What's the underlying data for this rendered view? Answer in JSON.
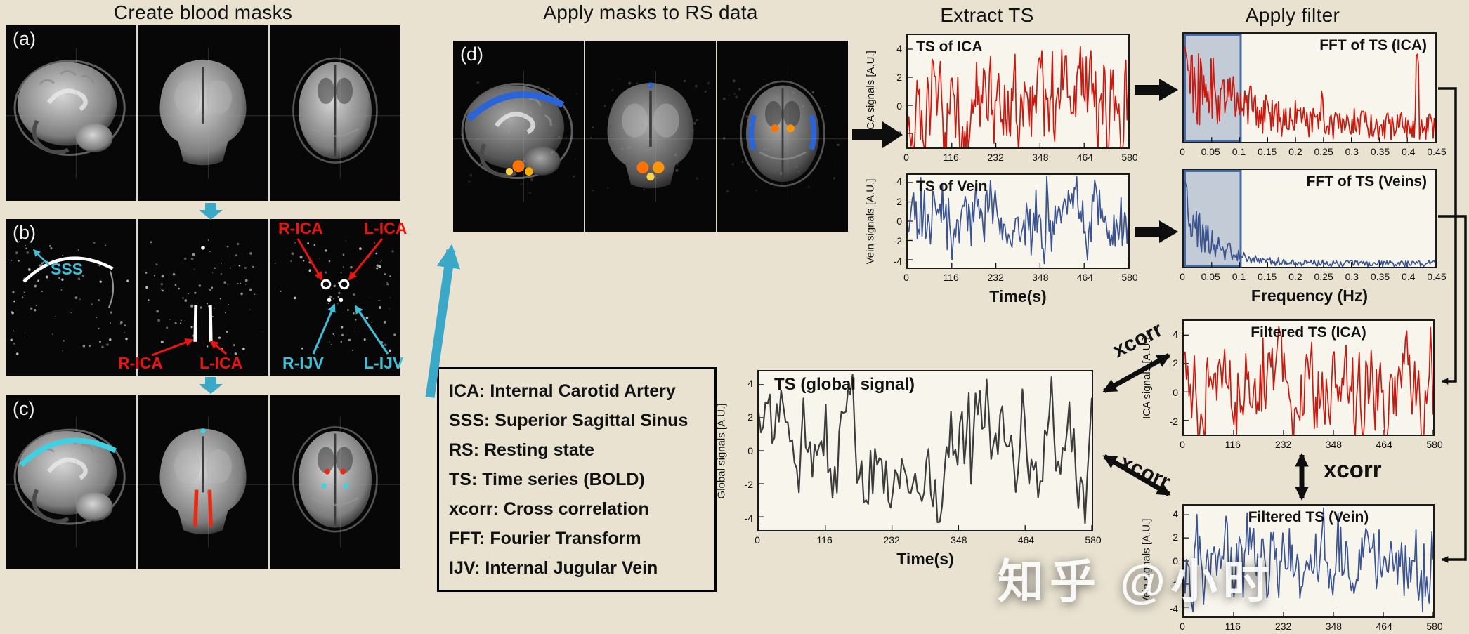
{
  "colors": {
    "background": "#e9e2d1",
    "panel_black": "#0a0a0a",
    "cyan_arrow": "#3aa8c6",
    "annotation_red": "#ed1410",
    "annotation_cyan": "#3fc0d8",
    "ica_red": "#c81a10",
    "vein_blue": "#3a5391",
    "global_gray": "#3c3c3c",
    "plot_background": "#f8f5ec",
    "filter_band_fill": "rgba(108,134,178,0.38)",
    "filter_band_border": "#46699f"
  },
  "left": {
    "title": "Create blood masks",
    "panels": [
      {
        "label": "(a)"
      },
      {
        "label": "(b)"
      },
      {
        "label": "(c)"
      }
    ]
  },
  "panel_b": {
    "sss": "SSS",
    "r_ica_top": "R-ICA",
    "l_ica_top": "L-ICA",
    "r_ica_bottom": "R-ICA",
    "l_ica_bottom": "L-ICA",
    "r_ijv": "R-IJV",
    "l_ijv": "L-IJV"
  },
  "middle": {
    "title": "Apply masks to RS data",
    "panel_label": "(d)",
    "legend": {
      "lines": [
        "ICA: Internal Carotid Artery",
        "SSS: Superior Sagittal Sinus",
        "RS: Resting state",
        "TS: Time series (BOLD)",
        "xcorr: Cross correlation",
        "FFT: Fourier Transform",
        "IJV: Internal Jugular Vein"
      ]
    }
  },
  "sections": {
    "extract_ts": "Extract TS",
    "apply_filter": "Apply filter"
  },
  "xcorr": [
    "xcorr",
    "xcorr",
    "xcorr"
  ],
  "watermark": "知乎 @小时",
  "chart_data": [
    {
      "id": "ts_ica",
      "type": "line",
      "title": "TS of ICA",
      "title_pos": "tl",
      "color": "#c81a10",
      "ylabel": "ICA signals [A.U.]",
      "xlabel": "",
      "xticks": [
        0,
        116,
        232,
        348,
        464,
        580
      ],
      "xlim": [
        0,
        580
      ],
      "yticks": [
        4,
        2,
        0,
        -2
      ],
      "ylim": [
        -3,
        5
      ],
      "signal": {
        "kind": "ts",
        "seed": 17,
        "n": 190,
        "sd": 1.25,
        "smooth": 0.45,
        "spike": 0.035
      }
    },
    {
      "id": "ts_vein",
      "type": "line",
      "title": "TS of Vein",
      "title_pos": "tl",
      "color": "#3a5391",
      "ylabel": "Vein signals [A.U.]",
      "xlabel": "Time(s)",
      "xticks": [
        0,
        116,
        232,
        348,
        464,
        580
      ],
      "xlim": [
        0,
        580
      ],
      "yticks": [
        4,
        2,
        0,
        -2,
        -4
      ],
      "ylim": [
        -4.8,
        4.8
      ],
      "signal": {
        "kind": "ts",
        "seed": 29,
        "n": 185,
        "sd": 1.5,
        "smooth": 0.55,
        "spike": 0.02
      }
    },
    {
      "id": "fft_ica",
      "type": "line",
      "title": "FFT of TS (ICA)",
      "title_pos": "tr",
      "color": "#c81a10",
      "ylabel": "",
      "xlabel": "",
      "xticks": [
        0,
        0.05,
        0.1,
        0.15,
        0.2,
        0.25,
        0.3,
        0.35,
        0.4,
        0.45
      ],
      "xlim": [
        0,
        0.45
      ],
      "yticks": [],
      "ylim": [
        0,
        1.05
      ],
      "band": {
        "from": 0,
        "to": 0.1
      },
      "signal": {
        "kind": "fft",
        "seed": 41,
        "n": 240,
        "decay": 4.5,
        "floor": 0.3,
        "spikes": [
          [
            0.93,
            0.85
          ],
          [
            0.55,
            0.5
          ]
        ]
      }
    },
    {
      "id": "fft_vein",
      "type": "line",
      "title": "FFT of TS (Veins)",
      "title_pos": "tr",
      "color": "#3a5391",
      "ylabel": "",
      "xlabel": "Frequency (Hz)",
      "xticks": [
        0,
        0.05,
        0.1,
        0.15,
        0.2,
        0.25,
        0.3,
        0.35,
        0.4,
        0.45
      ],
      "xlim": [
        0,
        0.45
      ],
      "yticks": [],
      "ylim": [
        0,
        1.05
      ],
      "band": {
        "from": 0,
        "to": 0.1
      },
      "signal": {
        "kind": "fft",
        "seed": 53,
        "n": 240,
        "decay": 9,
        "floor": 0.07,
        "spikes": [
          [
            0.18,
            0.28
          ]
        ]
      }
    },
    {
      "id": "global",
      "type": "line",
      "title": "TS (global signal)",
      "title_pos": "tl",
      "title_size": 24,
      "color": "#3c3c3c",
      "stroke": 2.2,
      "ylabel": "Global signals [A.U.]",
      "xlabel": "Time(s)",
      "xticks": [
        0,
        116,
        232,
        348,
        464,
        580
      ],
      "xlim": [
        0,
        580
      ],
      "yticks": [
        4,
        2,
        0,
        -2,
        -4
      ],
      "ylim": [
        -4.8,
        4.8
      ],
      "signal": {
        "kind": "ts",
        "seed": 7,
        "n": 150,
        "sd": 1.6,
        "smooth": 0.62,
        "spike": 0.015
      }
    },
    {
      "id": "filt_ica",
      "type": "line",
      "title": "Filtered TS (ICA)",
      "title_pos": "tc",
      "color": "#c81a10",
      "ylabel": "ICA signals [A.U.]",
      "xlabel": "",
      "xticks": [
        0,
        116,
        232,
        348,
        464,
        580
      ],
      "xlim": [
        0,
        580
      ],
      "yticks": [
        4,
        2,
        0,
        -2
      ],
      "ylim": [
        -3,
        5
      ],
      "signal": {
        "kind": "ts",
        "seed": 61,
        "n": 190,
        "sd": 1.25,
        "smooth": 0.5,
        "spike": 0.03
      }
    },
    {
      "id": "filt_vein",
      "type": "line",
      "title": "Filtered TS (Vein)",
      "title_pos": "tc",
      "color": "#3a5391",
      "ylabel": "Vein signals [A.U.]",
      "xlabel": "",
      "xticks": [
        0,
        116,
        232,
        348,
        464,
        580
      ],
      "xlim": [
        0,
        580
      ],
      "yticks": [
        4,
        2,
        0,
        -2,
        -4
      ],
      "ylim": [
        -4.8,
        4.8
      ],
      "signal": {
        "kind": "ts",
        "seed": 73,
        "n": 190,
        "sd": 1.5,
        "smooth": 0.55,
        "spike": 0.02
      }
    }
  ]
}
